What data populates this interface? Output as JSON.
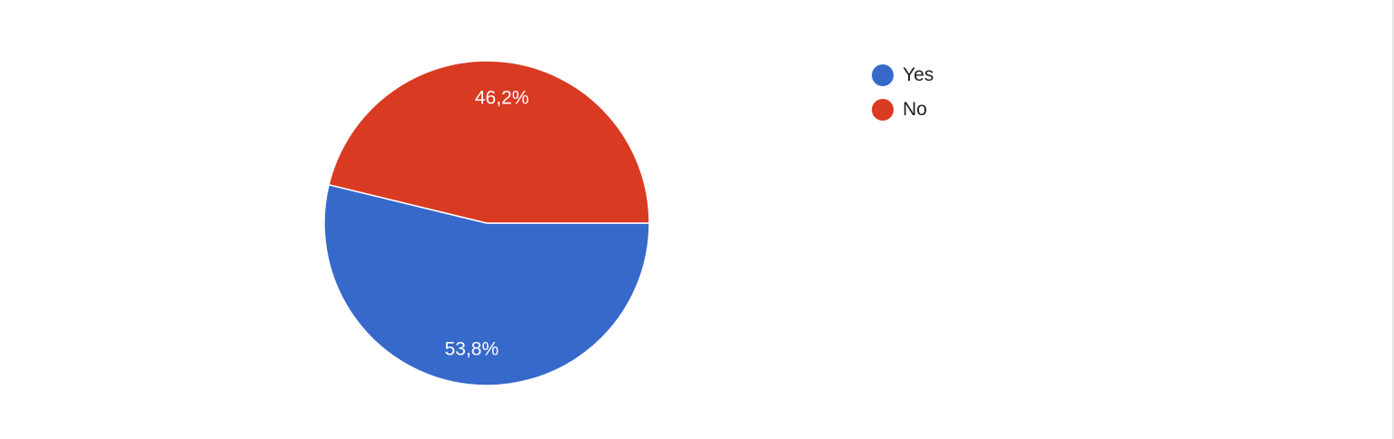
{
  "chart_data": {
    "type": "pie",
    "title": "",
    "slices": [
      {
        "label": "Yes",
        "value": 53.8,
        "display": "53,8%",
        "color": "#3769cb"
      },
      {
        "label": "No",
        "value": 46.2,
        "display": "46,2%",
        "color": "#d93a22"
      }
    ],
    "legend_position": "top-right"
  }
}
